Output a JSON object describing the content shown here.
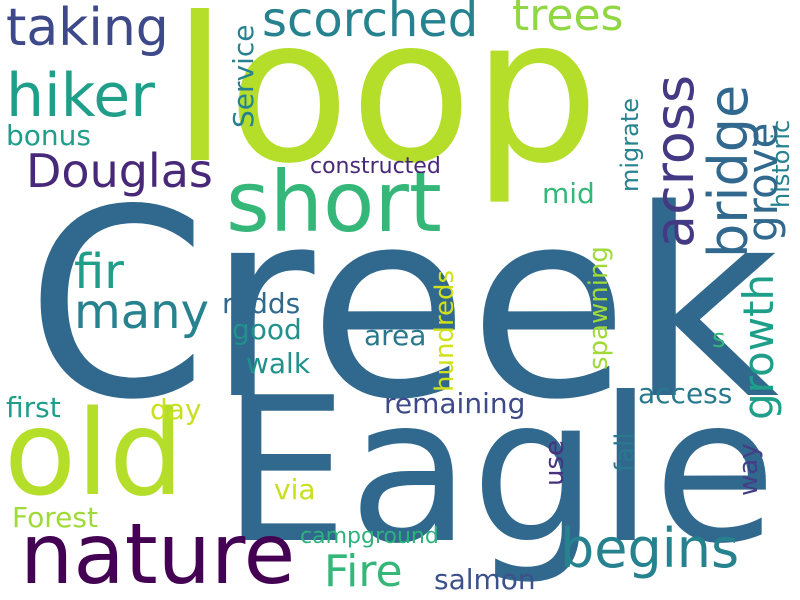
{
  "words": {
    "creek": {
      "text": "Creek",
      "color": "#31688e"
    },
    "eagle": {
      "text": "Eagle",
      "color": "#31688e"
    },
    "loop": {
      "text": "loop",
      "color": "#b5de2b"
    },
    "old": {
      "text": "old",
      "color": "#b5de2b"
    },
    "nature": {
      "text": "nature",
      "color": "#440154"
    },
    "short": {
      "text": "short",
      "color": "#35b779"
    },
    "hiker": {
      "text": "hiker",
      "color": "#1f9e89"
    },
    "scorched": {
      "text": "scorched",
      "color": "#26828e"
    },
    "taking": {
      "text": "taking",
      "color": "#3e4989"
    },
    "trees": {
      "text": "trees",
      "color": "#90d743"
    },
    "begins": {
      "text": "begins",
      "color": "#26828e"
    },
    "douglas": {
      "text": "Douglas",
      "color": "#482878"
    },
    "fir": {
      "text": "fir",
      "color": "#1f9e89"
    },
    "many": {
      "text": "many",
      "color": "#26828e"
    },
    "fire": {
      "text": "Fire",
      "color": "#35b779"
    },
    "bridge": {
      "text": "bridge",
      "color": "#31688e"
    },
    "across": {
      "text": "across",
      "color": "#443983"
    },
    "grove": {
      "text": "grove",
      "color": "#31688e"
    },
    "growth": {
      "text": "growth",
      "color": "#1f9e89"
    },
    "historic": {
      "text": "historic",
      "color": "#26828e"
    },
    "migrate": {
      "text": "migrate",
      "color": "#26828e"
    },
    "service": {
      "text": "Service",
      "color": "#26828e"
    },
    "bonus": {
      "text": "bonus",
      "color": "#1f9e89"
    },
    "constructed": {
      "text": "constructed",
      "color": "#482878"
    },
    "mid": {
      "text": "mid",
      "color": "#35b779"
    },
    "redds": {
      "text": "redds",
      "color": "#31688e"
    },
    "good": {
      "text": "good",
      "color": "#21918c"
    },
    "area": {
      "text": "area",
      "color": "#2a788e"
    },
    "walk": {
      "text": "walk",
      "color": "#21918c"
    },
    "spawning": {
      "text": "spawning",
      "color": "#a0da39"
    },
    "hundreds": {
      "text": "hundreds",
      "color": "#d0e11c"
    },
    "s": {
      "text": "s",
      "color": "#35b779"
    },
    "first": {
      "text": "first",
      "color": "#1f9e89"
    },
    "day": {
      "text": "day",
      "color": "#c8e020"
    },
    "remaining": {
      "text": "remaining",
      "color": "#3e4989"
    },
    "access": {
      "text": "access",
      "color": "#2a788e"
    },
    "fall": {
      "text": "fall",
      "color": "#2a788e"
    },
    "use": {
      "text": "use",
      "color": "#46327e"
    },
    "way": {
      "text": "way",
      "color": "#433e85"
    },
    "via": {
      "text": "via",
      "color": "#c8e020"
    },
    "forest": {
      "text": "Forest",
      "color": "#a0da39"
    },
    "campground": {
      "text": "campground",
      "color": "#2db27d"
    },
    "salmon": {
      "text": "salmon",
      "color": "#3b528b"
    }
  }
}
